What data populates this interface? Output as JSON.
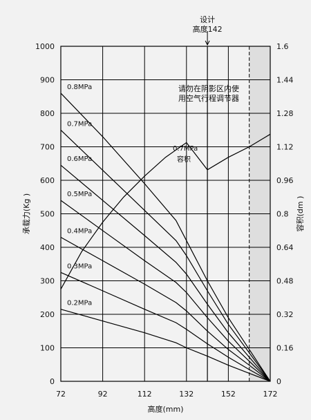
{
  "chart_data": {
    "type": "line",
    "xlabel": "高度(mm)",
    "ylabel_left": "承载力(Kg )",
    "ylabel_right": "容积(dm )",
    "xlim": [
      72,
      172
    ],
    "ylim_left": [
      0,
      1000
    ],
    "ylim_right": [
      0,
      1.6
    ],
    "x_ticks": [
      72,
      92,
      112,
      132,
      152,
      172
    ],
    "y_ticks_left": [
      0,
      100,
      200,
      300,
      400,
      500,
      600,
      700,
      800,
      900,
      1000
    ],
    "y_ticks_right": [
      "0",
      "0.16",
      "0.32",
      "0.48",
      "0.64",
      "0.8",
      "0.96",
      "1.12",
      "1.28",
      "1.44",
      "1.6"
    ],
    "grid": true,
    "shaded_from_x": 162,
    "design": {
      "x": 142,
      "label_line1": "设计",
      "label_line2": "高度142"
    },
    "shade_note": {
      "line1": "请勿在阴影区内使",
      "line2": "用空气行程调节器"
    },
    "volume_series": {
      "name_line1": "0.7MPa",
      "name_line2": "容积",
      "points": [
        [
          72,
          0.44
        ],
        [
          82,
          0.62
        ],
        [
          92,
          0.76
        ],
        [
          102,
          0.88
        ],
        [
          112,
          0.98
        ],
        [
          122,
          1.07
        ],
        [
          132,
          1.14
        ],
        [
          142,
          1.01
        ],
        [
          152,
          1.07
        ],
        [
          162,
          1.12
        ],
        [
          172,
          1.18
        ]
      ]
    },
    "series": [
      {
        "name": "0.8MPa",
        "points": [
          [
            72,
            860
          ],
          [
            92,
            730
          ],
          [
            112,
            590
          ],
          [
            127,
            480
          ],
          [
            132,
            420
          ],
          [
            142,
            300
          ],
          [
            152,
            190
          ],
          [
            162,
            95
          ],
          [
            172,
            0
          ]
        ]
      },
      {
        "name": "0.7MPa",
        "points": [
          [
            72,
            750
          ],
          [
            92,
            630
          ],
          [
            112,
            510
          ],
          [
            127,
            420
          ],
          [
            132,
            375
          ],
          [
            142,
            270
          ],
          [
            152,
            170
          ],
          [
            162,
            85
          ],
          [
            172,
            0
          ]
        ]
      },
      {
        "name": "0.6MPa",
        "points": [
          [
            72,
            645
          ],
          [
            92,
            540
          ],
          [
            112,
            435
          ],
          [
            127,
            355
          ],
          [
            132,
            320
          ],
          [
            142,
            230
          ],
          [
            152,
            145
          ],
          [
            162,
            72
          ],
          [
            172,
            0
          ]
        ]
      },
      {
        "name": "0.5MPa",
        "points": [
          [
            72,
            540
          ],
          [
            92,
            450
          ],
          [
            112,
            360
          ],
          [
            127,
            295
          ],
          [
            132,
            265
          ],
          [
            142,
            190
          ],
          [
            152,
            120
          ],
          [
            162,
            60
          ],
          [
            172,
            0
          ]
        ]
      },
      {
        "name": "0.4MPa",
        "points": [
          [
            72,
            430
          ],
          [
            92,
            360
          ],
          [
            112,
            290
          ],
          [
            127,
            235
          ],
          [
            132,
            210
          ],
          [
            142,
            150
          ],
          [
            152,
            95
          ],
          [
            162,
            48
          ],
          [
            172,
            0
          ]
        ]
      },
      {
        "name": "0.3MPa",
        "points": [
          [
            72,
            325
          ],
          [
            92,
            270
          ],
          [
            112,
            215
          ],
          [
            127,
            175
          ],
          [
            132,
            155
          ],
          [
            142,
            112
          ],
          [
            152,
            72
          ],
          [
            162,
            35
          ],
          [
            172,
            0
          ]
        ]
      },
      {
        "name": "0.2MPa",
        "points": [
          [
            72,
            215
          ],
          [
            92,
            180
          ],
          [
            112,
            145
          ],
          [
            127,
            115
          ],
          [
            132,
            100
          ],
          [
            142,
            75
          ],
          [
            152,
            48
          ],
          [
            162,
            24
          ],
          [
            172,
            0
          ]
        ]
      }
    ]
  }
}
